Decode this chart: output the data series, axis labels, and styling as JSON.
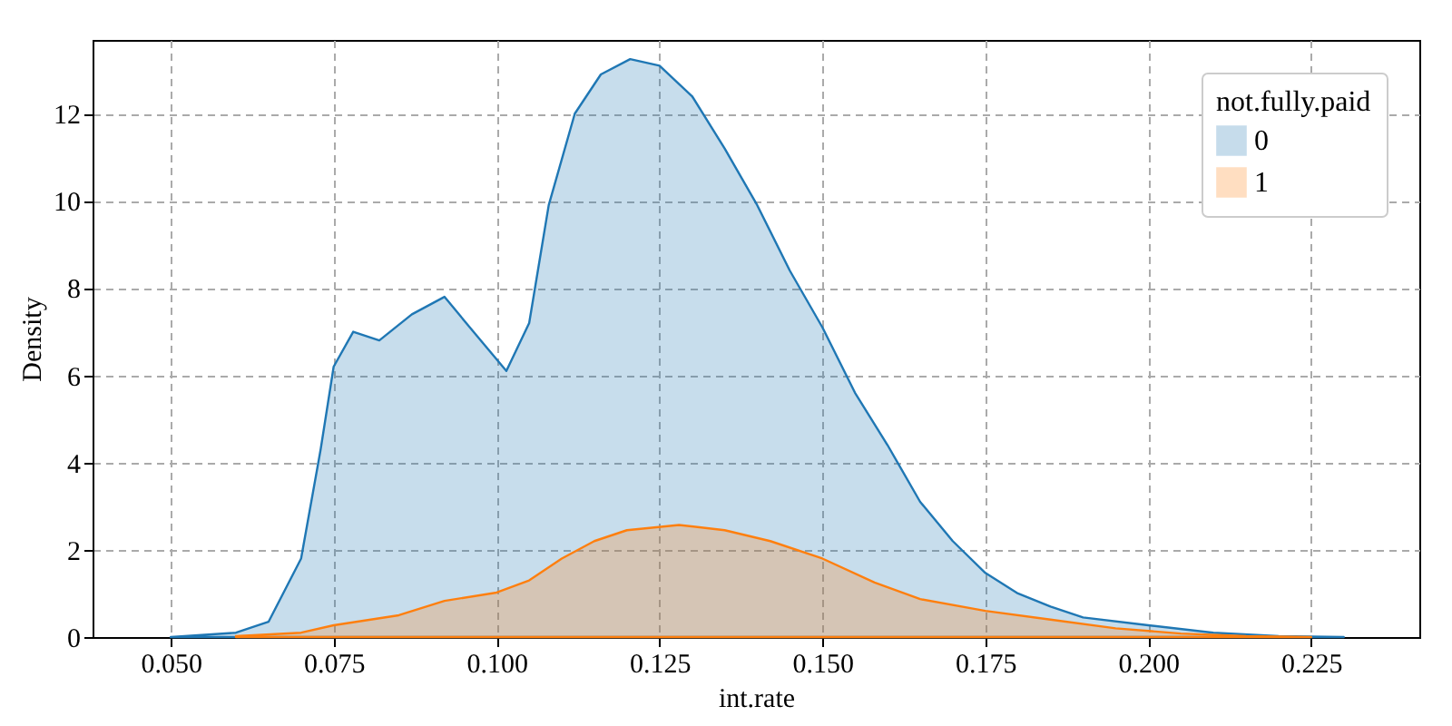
{
  "chart_data": {
    "type": "area",
    "xlabel": "int.rate",
    "ylabel": "Density",
    "legend_title": "not.fully.paid",
    "legend": "top right",
    "grid": true,
    "marker": "none",
    "line_style": "solid",
    "xlim": [
      0.038,
      0.2416
    ],
    "ylim": [
      0,
      13.69
    ],
    "xticks": [
      {
        "value": 0.05,
        "label": "0.050"
      },
      {
        "value": 0.075,
        "label": "0.075"
      },
      {
        "value": 0.1,
        "label": "0.100"
      },
      {
        "value": 0.125,
        "label": "0.125"
      },
      {
        "value": 0.15,
        "label": "0.150"
      },
      {
        "value": 0.175,
        "label": "0.175"
      },
      {
        "value": 0.2,
        "label": "0.200"
      },
      {
        "value": 0.225,
        "label": "0.225"
      }
    ],
    "yticks": [
      0,
      2,
      4,
      6,
      8,
      10,
      12
    ],
    "series": [
      {
        "name": "0",
        "color": "#1f77b4",
        "x": [
          0.05,
          0.06,
          0.065,
          0.07,
          0.073,
          0.075,
          0.078,
          0.082,
          0.087,
          0.092,
          0.097,
          0.1015,
          0.105,
          0.108,
          0.112,
          0.116,
          0.1205,
          0.125,
          0.13,
          0.135,
          0.14,
          0.145,
          0.15,
          0.155,
          0.16,
          0.165,
          0.17,
          0.175,
          0.18,
          0.185,
          0.19,
          0.2,
          0.21,
          0.22,
          0.23
        ],
        "values": [
          0,
          0.1,
          0.35,
          1.8,
          4.3,
          6.2,
          7.0,
          6.8,
          7.4,
          7.8,
          6.9,
          6.1,
          7.2,
          9.9,
          12.0,
          12.9,
          13.25,
          13.1,
          12.4,
          11.2,
          9.9,
          8.4,
          7.1,
          5.6,
          4.4,
          3.1,
          2.2,
          1.47,
          1.0,
          0.7,
          0.45,
          0.27,
          0.1,
          0.02,
          0
        ]
      },
      {
        "name": "1",
        "color": "#ff7f0e",
        "x": [
          0.06,
          0.07,
          0.075,
          0.085,
          0.092,
          0.1,
          0.105,
          0.11,
          0.115,
          0.12,
          0.128,
          0.135,
          0.142,
          0.15,
          0.158,
          0.165,
          0.175,
          0.185,
          0.195,
          0.205,
          0.215,
          0.225
        ],
        "values": [
          0.02,
          0.1,
          0.27,
          0.5,
          0.83,
          1.02,
          1.3,
          1.8,
          2.2,
          2.45,
          2.57,
          2.45,
          2.2,
          1.8,
          1.25,
          0.87,
          0.6,
          0.4,
          0.2,
          0.08,
          0.02,
          0
        ]
      }
    ]
  }
}
